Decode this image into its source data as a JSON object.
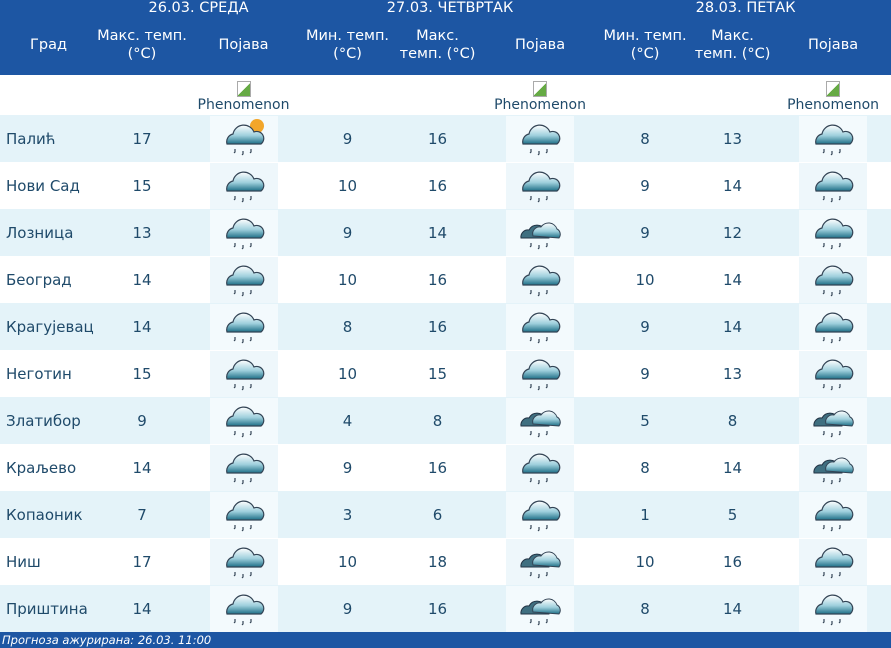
{
  "days": [
    "26.03. СРЕДА",
    "27.03. ЧЕТВРТАК",
    "28.03. ПЕТАК"
  ],
  "headers": {
    "city": "Град",
    "max": "Макс. темп. (°C)",
    "min": "Мин. темп. (°C)",
    "phenomenon": "Појава",
    "phenomenon_alt": "Phenomenon"
  },
  "rows": [
    {
      "city": "Палић",
      "d1max": "17",
      "d1icon": "partly-cloudy-rain",
      "d2min": "9",
      "d2max": "16",
      "d2icon": "rain",
      "d3min": "8",
      "d3max": "13",
      "d3icon": "rain"
    },
    {
      "city": "Нови Сад",
      "d1max": "15",
      "d1icon": "rain",
      "d2min": "10",
      "d2max": "16",
      "d2icon": "rain",
      "d3min": "9",
      "d3max": "14",
      "d3icon": "rain"
    },
    {
      "city": "Лозница",
      "d1max": "13",
      "d1icon": "rain",
      "d2min": "9",
      "d2max": "14",
      "d2icon": "clouds-rain",
      "d3min": "9",
      "d3max": "12",
      "d3icon": "rain"
    },
    {
      "city": "Београд",
      "d1max": "14",
      "d1icon": "rain",
      "d2min": "10",
      "d2max": "16",
      "d2icon": "rain",
      "d3min": "10",
      "d3max": "14",
      "d3icon": "rain"
    },
    {
      "city": "Крагујевац",
      "d1max": "14",
      "d1icon": "rain",
      "d2min": "8",
      "d2max": "16",
      "d2icon": "rain",
      "d3min": "9",
      "d3max": "14",
      "d3icon": "rain"
    },
    {
      "city": "Неготин",
      "d1max": "15",
      "d1icon": "rain",
      "d2min": "10",
      "d2max": "15",
      "d2icon": "rain",
      "d3min": "9",
      "d3max": "13",
      "d3icon": "rain"
    },
    {
      "city": "Златибор",
      "d1max": "9",
      "d1icon": "rain",
      "d2min": "4",
      "d2max": "8",
      "d2icon": "clouds-rain",
      "d3min": "5",
      "d3max": "8",
      "d3icon": "clouds-rain"
    },
    {
      "city": "Краљево",
      "d1max": "14",
      "d1icon": "rain",
      "d2min": "9",
      "d2max": "16",
      "d2icon": "rain",
      "d3min": "8",
      "d3max": "14",
      "d3icon": "clouds-rain"
    },
    {
      "city": "Копаоник",
      "d1max": "7",
      "d1icon": "rain",
      "d2min": "3",
      "d2max": "6",
      "d2icon": "rain",
      "d3min": "1",
      "d3max": "5",
      "d3icon": "rain"
    },
    {
      "city": "Ниш",
      "d1max": "17",
      "d1icon": "rain",
      "d2min": "10",
      "d2max": "18",
      "d2icon": "clouds-rain",
      "d3min": "10",
      "d3max": "16",
      "d3icon": "rain"
    },
    {
      "city": "Приштина",
      "d1max": "14",
      "d1icon": "rain",
      "d2min": "9",
      "d2max": "16",
      "d2icon": "clouds-rain",
      "d3min": "8",
      "d3max": "14",
      "d3icon": "rain"
    }
  ],
  "footer": "Прогноза ажурирана:  26.03. 11:00"
}
